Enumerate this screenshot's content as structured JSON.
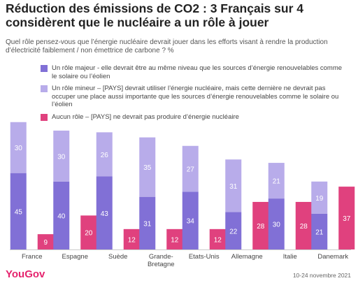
{
  "title": "Réduction des émissions de CO2 : 3 Français sur 4 considèrent que le nucléaire a un rôle à jouer",
  "subtitle": "Quel rôle pensez-vous que l’énergie nucléaire devrait jouer dans les efforts visant à rendre la production d’électricité faiblement / non émettrice de carbone ? %",
  "footer": {
    "logo": "YouGov",
    "date": "10-24 novembre 2021"
  },
  "colors": {
    "major": "#8170d6",
    "minor": "#b8acea",
    "none": "#e0417e"
  },
  "chart_data": {
    "type": "bar",
    "categories": [
      "France",
      "Espagne",
      "Suède",
      "Grande-Bretagne",
      "Etats-Unis",
      "Allemagne",
      "Italie",
      "Danemark"
    ],
    "category_lines": [
      [
        "France"
      ],
      [
        "Espagne"
      ],
      [
        "Suède"
      ],
      [
        "Grande-",
        "Bretagne"
      ],
      [
        "Etats-Unis"
      ],
      [
        "Allemagne"
      ],
      [
        "Italie"
      ],
      [
        "Danemark"
      ]
    ],
    "series": [
      {
        "name": "Un rôle majeur - elle devrait être au même niveau que les sources d’énergie renouvelables comme le solaire ou l’éolien",
        "values": [
          45,
          40,
          43,
          31,
          34,
          22,
          30,
          21
        ],
        "stack": "a",
        "color": "#8170d6"
      },
      {
        "name": "Un rôle mineur – [PAYS] devrait utiliser l’énergie nucléaire, mais cette dernière ne devrait pas occuper une place aussi importante que les sources d’énergie renouvelables comme le solaire ou l’éolien",
        "values": [
          30,
          30,
          26,
          35,
          27,
          31,
          21,
          19
        ],
        "stack": "a",
        "color": "#b8acea"
      },
      {
        "name": "Aucun rôle – [PAYS] ne devrait pas produire d’énergie nucléaire",
        "values": [
          9,
          20,
          12,
          12,
          12,
          28,
          28,
          37
        ],
        "stack": "b",
        "color": "#e0417e"
      }
    ],
    "stacked": true,
    "legend": "top",
    "ylim": [
      0,
      80
    ],
    "grid": false
  }
}
